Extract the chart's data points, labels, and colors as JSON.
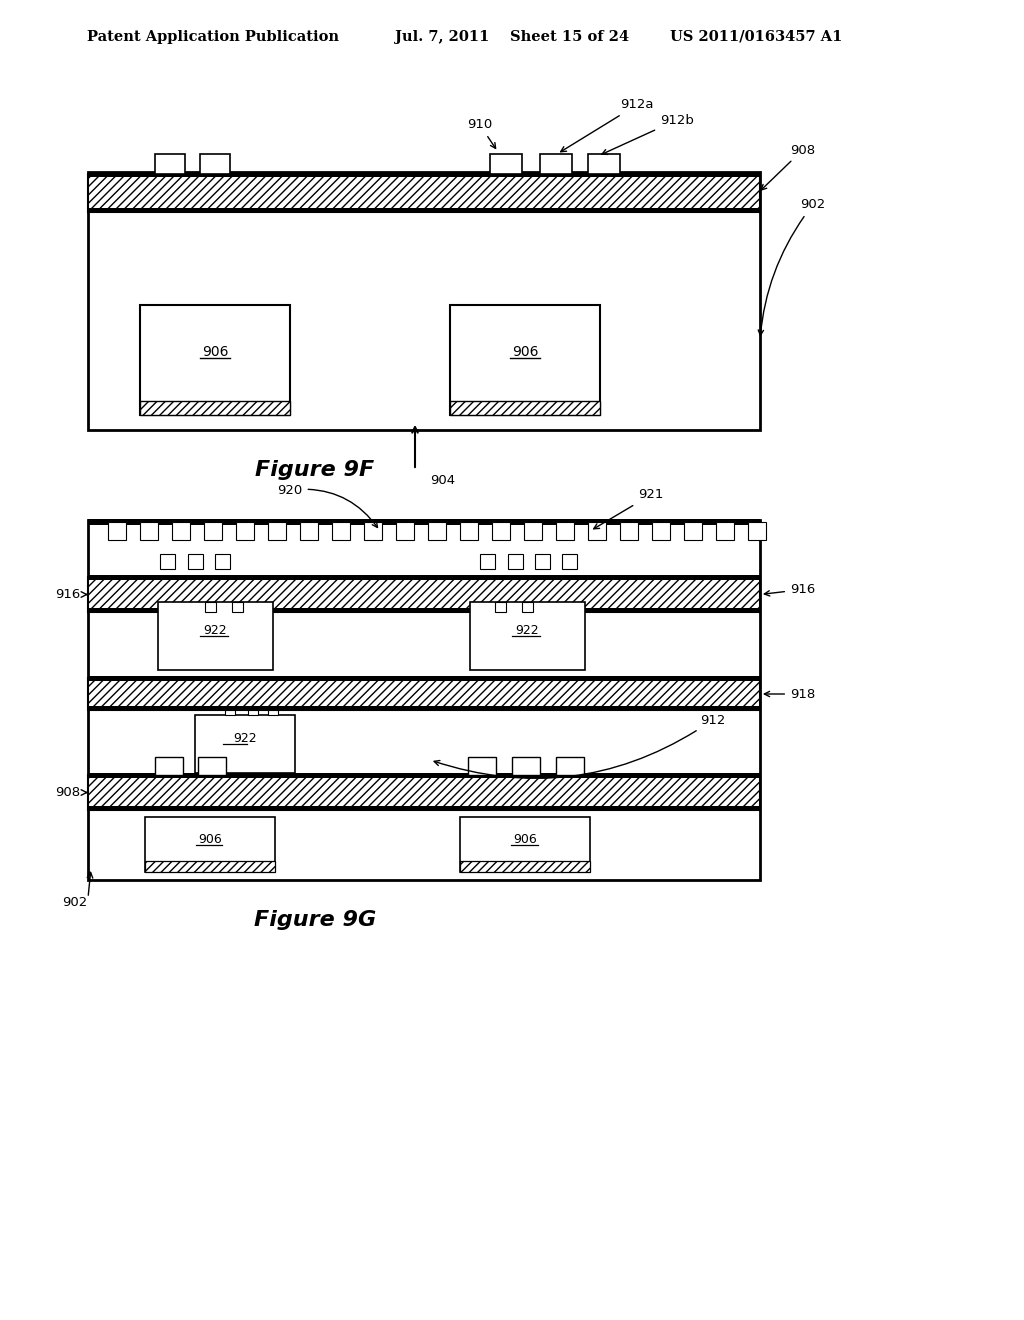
{
  "bg_color": "#ffffff",
  "line_color": "#000000",
  "header_text": "Patent Application Publication",
  "header_date": "Jul. 7, 2011",
  "header_sheet": "Sheet 15 of 24",
  "header_patent": "US 2011/0163457 A1",
  "fig9f_label": "Figure 9F",
  "fig9g_label": "Figure 9G",
  "font_size_header": 10.5,
  "font_size_caption": 16,
  "font_size_ref": 9.5,
  "font_size_chip": 10
}
